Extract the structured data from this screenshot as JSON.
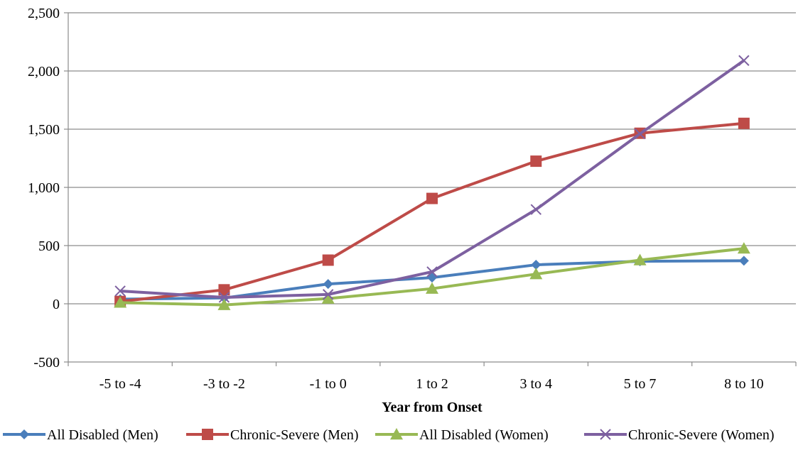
{
  "chart_data": {
    "type": "line",
    "title": "",
    "xlabel": "Year from Onset",
    "ylabel": "",
    "categories": [
      "-5 to -4",
      "-3 to -2",
      "-1 to 0",
      "1 to 2",
      "3 to 4",
      "5 to 7",
      "8 to 10"
    ],
    "ylim": [
      -500,
      2500
    ],
    "yticks": [
      -500,
      0,
      500,
      1000,
      1500,
      2000,
      2500
    ],
    "ytick_labels": [
      "-500",
      "0",
      "500",
      "1,000",
      "1,500",
      "2,000",
      "2,500"
    ],
    "grid": true,
    "legend_position": "bottom",
    "series": [
      {
        "name": "All Disabled (Men)",
        "color": "#4a7ebb",
        "marker": "diamond",
        "values": [
          40,
          50,
          170,
          225,
          335,
          365,
          370
        ]
      },
      {
        "name": "Chronic-Severe (Men)",
        "color": "#be4b48",
        "marker": "square",
        "values": [
          20,
          120,
          375,
          905,
          1225,
          1465,
          1550
        ]
      },
      {
        "name": "All Disabled (Women)",
        "color": "#98b954",
        "marker": "triangle",
        "values": [
          10,
          -10,
          45,
          130,
          255,
          375,
          475
        ]
      },
      {
        "name": "Chronic-Severe (Women)",
        "color": "#7d60a0",
        "marker": "x",
        "values": [
          110,
          55,
          80,
          275,
          810,
          1460,
          2090
        ]
      }
    ]
  }
}
